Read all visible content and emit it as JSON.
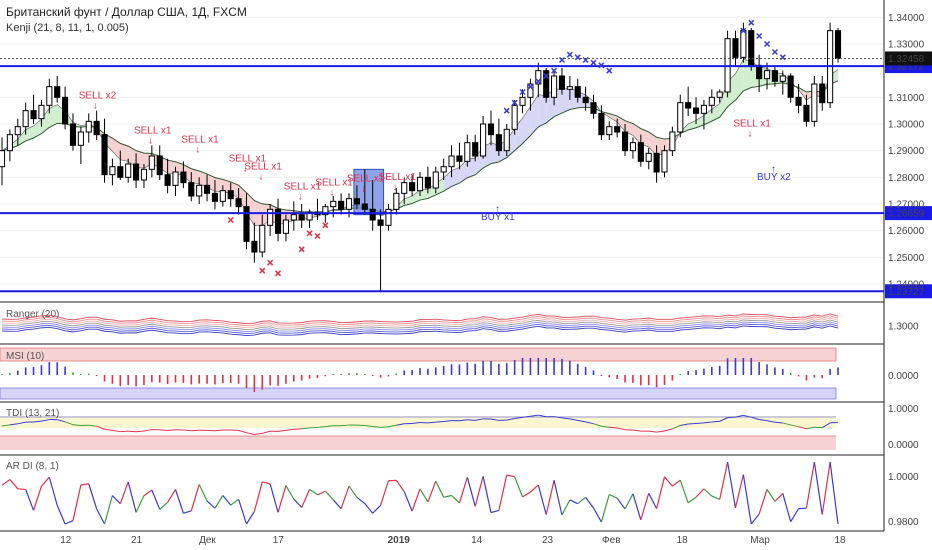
{
  "header": {
    "title": "Британский фунт / Доллар США, 1Д, FXCM",
    "subtitle": "Kenji (21, 8, 11, 1, 0.005)"
  },
  "colors": {
    "up": "#ffffff",
    "down": "#000000",
    "level_line": "#1a1ae6",
    "sell": "#e0304a",
    "buy": "#3a3ad6",
    "x_marker_red": "#e0304a",
    "x_marker_blue": "#3a3ad6",
    "cloud_red": "#f3c9c9",
    "cloud_blue": "#cfd0f3",
    "cloud_green": "#c9ebc9"
  },
  "chart_data": [
    {
      "type": "candlestick",
      "name": "main",
      "ylim": [
        1.234,
        1.345
      ],
      "y_ticks": [
        "1.34000",
        "1.33000",
        "1.31000",
        "1.30000",
        "1.29000",
        "1.28000",
        "1.27000",
        "1.26000",
        "1.25000",
        "1.24000"
      ],
      "x_tick_labels": [
        "12",
        "21",
        "Дек",
        "17",
        "2019",
        "14",
        "23",
        "Фев",
        "18",
        "Мар",
        "18"
      ],
      "horizontal_levels": [
        {
          "value": 1.32172,
          "label": "1.32172"
        },
        {
          "value": 1.26659,
          "label": "1.26659"
        },
        {
          "value": 1.23727,
          "label": "1.23727"
        }
      ],
      "last_price_label": "1.32458",
      "candles": [
        {
          "o": 1.284,
          "h": 1.295,
          "l": 1.277,
          "c": 1.29
        },
        {
          "o": 1.29,
          "h": 1.298,
          "l": 1.286,
          "c": 1.296
        },
        {
          "o": 1.296,
          "h": 1.302,
          "l": 1.292,
          "c": 1.299
        },
        {
          "o": 1.299,
          "h": 1.308,
          "l": 1.296,
          "c": 1.305
        },
        {
          "o": 1.305,
          "h": 1.311,
          "l": 1.3,
          "c": 1.302
        },
        {
          "o": 1.302,
          "h": 1.309,
          "l": 1.299,
          "c": 1.307
        },
        {
          "o": 1.307,
          "h": 1.317,
          "l": 1.304,
          "c": 1.314
        },
        {
          "o": 1.314,
          "h": 1.318,
          "l": 1.308,
          "c": 1.31
        },
        {
          "o": 1.31,
          "h": 1.314,
          "l": 1.298,
          "c": 1.3
        },
        {
          "o": 1.3,
          "h": 1.304,
          "l": 1.29,
          "c": 1.292
        },
        {
          "o": 1.292,
          "h": 1.299,
          "l": 1.285,
          "c": 1.297
        },
        {
          "o": 1.297,
          "h": 1.304,
          "l": 1.293,
          "c": 1.301
        },
        {
          "o": 1.301,
          "h": 1.305,
          "l": 1.294,
          "c": 1.296
        },
        {
          "o": 1.296,
          "h": 1.302,
          "l": 1.278,
          "c": 1.281
        },
        {
          "o": 1.281,
          "h": 1.287,
          "l": 1.277,
          "c": 1.284
        },
        {
          "o": 1.284,
          "h": 1.29,
          "l": 1.279,
          "c": 1.28
        },
        {
          "o": 1.28,
          "h": 1.287,
          "l": 1.278,
          "c": 1.285
        },
        {
          "o": 1.285,
          "h": 1.289,
          "l": 1.276,
          "c": 1.279
        },
        {
          "o": 1.279,
          "h": 1.285,
          "l": 1.276,
          "c": 1.283
        },
        {
          "o": 1.283,
          "h": 1.292,
          "l": 1.28,
          "c": 1.288
        },
        {
          "o": 1.288,
          "h": 1.292,
          "l": 1.279,
          "c": 1.281
        },
        {
          "o": 1.281,
          "h": 1.287,
          "l": 1.274,
          "c": 1.277
        },
        {
          "o": 1.277,
          "h": 1.284,
          "l": 1.273,
          "c": 1.282
        },
        {
          "o": 1.282,
          "h": 1.286,
          "l": 1.276,
          "c": 1.278
        },
        {
          "o": 1.278,
          "h": 1.282,
          "l": 1.271,
          "c": 1.273
        },
        {
          "o": 1.273,
          "h": 1.28,
          "l": 1.27,
          "c": 1.277
        },
        {
          "o": 1.277,
          "h": 1.281,
          "l": 1.271,
          "c": 1.274
        },
        {
          "o": 1.274,
          "h": 1.279,
          "l": 1.268,
          "c": 1.271
        },
        {
          "o": 1.271,
          "h": 1.277,
          "l": 1.269,
          "c": 1.275
        },
        {
          "o": 1.275,
          "h": 1.278,
          "l": 1.269,
          "c": 1.272
        },
        {
          "o": 1.272,
          "h": 1.276,
          "l": 1.266,
          "c": 1.269
        },
        {
          "o": 1.269,
          "h": 1.274,
          "l": 1.253,
          "c": 1.256
        },
        {
          "o": 1.256,
          "h": 1.263,
          "l": 1.248,
          "c": 1.252
        },
        {
          "o": 1.252,
          "h": 1.266,
          "l": 1.25,
          "c": 1.262
        },
        {
          "o": 1.262,
          "h": 1.27,
          "l": 1.258,
          "c": 1.268
        },
        {
          "o": 1.268,
          "h": 1.272,
          "l": 1.256,
          "c": 1.259
        },
        {
          "o": 1.259,
          "h": 1.266,
          "l": 1.256,
          "c": 1.264
        },
        {
          "o": 1.264,
          "h": 1.271,
          "l": 1.26,
          "c": 1.266
        },
        {
          "o": 1.266,
          "h": 1.27,
          "l": 1.261,
          "c": 1.264
        },
        {
          "o": 1.264,
          "h": 1.268,
          "l": 1.261,
          "c": 1.267
        },
        {
          "o": 1.267,
          "h": 1.272,
          "l": 1.264,
          "c": 1.266
        },
        {
          "o": 1.266,
          "h": 1.27,
          "l": 1.263,
          "c": 1.269
        },
        {
          "o": 1.269,
          "h": 1.273,
          "l": 1.265,
          "c": 1.271
        },
        {
          "o": 1.271,
          "h": 1.274,
          "l": 1.266,
          "c": 1.268
        },
        {
          "o": 1.268,
          "h": 1.274,
          "l": 1.265,
          "c": 1.272
        },
        {
          "o": 1.272,
          "h": 1.277,
          "l": 1.268,
          "c": 1.27
        },
        {
          "o": 1.27,
          "h": 1.283,
          "l": 1.266,
          "c": 1.268
        },
        {
          "o": 1.268,
          "h": 1.279,
          "l": 1.26,
          "c": 1.264
        },
        {
          "o": 1.264,
          "h": 1.268,
          "l": 1.2373,
          "c": 1.262
        },
        {
          "o": 1.262,
          "h": 1.27,
          "l": 1.26,
          "c": 1.268
        },
        {
          "o": 1.268,
          "h": 1.276,
          "l": 1.266,
          "c": 1.274
        },
        {
          "o": 1.274,
          "h": 1.28,
          "l": 1.27,
          "c": 1.278
        },
        {
          "o": 1.278,
          "h": 1.281,
          "l": 1.273,
          "c": 1.275
        },
        {
          "o": 1.275,
          "h": 1.282,
          "l": 1.273,
          "c": 1.28
        },
        {
          "o": 1.28,
          "h": 1.284,
          "l": 1.274,
          "c": 1.276
        },
        {
          "o": 1.276,
          "h": 1.284,
          "l": 1.274,
          "c": 1.282
        },
        {
          "o": 1.282,
          "h": 1.287,
          "l": 1.279,
          "c": 1.284
        },
        {
          "o": 1.284,
          "h": 1.292,
          "l": 1.28,
          "c": 1.288
        },
        {
          "o": 1.288,
          "h": 1.293,
          "l": 1.283,
          "c": 1.286
        },
        {
          "o": 1.286,
          "h": 1.296,
          "l": 1.284,
          "c": 1.293
        },
        {
          "o": 1.293,
          "h": 1.296,
          "l": 1.286,
          "c": 1.288
        },
        {
          "o": 1.288,
          "h": 1.303,
          "l": 1.287,
          "c": 1.3
        },
        {
          "o": 1.3,
          "h": 1.305,
          "l": 1.292,
          "c": 1.296
        },
        {
          "o": 1.296,
          "h": 1.302,
          "l": 1.288,
          "c": 1.29
        },
        {
          "o": 1.29,
          "h": 1.3,
          "l": 1.288,
          "c": 1.298
        },
        {
          "o": 1.298,
          "h": 1.309,
          "l": 1.296,
          "c": 1.307
        },
        {
          "o": 1.307,
          "h": 1.313,
          "l": 1.304,
          "c": 1.31
        },
        {
          "o": 1.31,
          "h": 1.317,
          "l": 1.305,
          "c": 1.315
        },
        {
          "o": 1.315,
          "h": 1.323,
          "l": 1.31,
          "c": 1.32
        },
        {
          "o": 1.32,
          "h": 1.321,
          "l": 1.308,
          "c": 1.31
        },
        {
          "o": 1.31,
          "h": 1.32,
          "l": 1.307,
          "c": 1.318
        },
        {
          "o": 1.318,
          "h": 1.321,
          "l": 1.311,
          "c": 1.313
        },
        {
          "o": 1.313,
          "h": 1.318,
          "l": 1.309,
          "c": 1.314
        },
        {
          "o": 1.314,
          "h": 1.317,
          "l": 1.308,
          "c": 1.31
        },
        {
          "o": 1.31,
          "h": 1.314,
          "l": 1.305,
          "c": 1.308
        },
        {
          "o": 1.308,
          "h": 1.311,
          "l": 1.302,
          "c": 1.304
        },
        {
          "o": 1.304,
          "h": 1.307,
          "l": 1.294,
          "c": 1.296
        },
        {
          "o": 1.296,
          "h": 1.301,
          "l": 1.294,
          "c": 1.299
        },
        {
          "o": 1.299,
          "h": 1.302,
          "l": 1.295,
          "c": 1.297
        },
        {
          "o": 1.297,
          "h": 1.3,
          "l": 1.288,
          "c": 1.29
        },
        {
          "o": 1.29,
          "h": 1.295,
          "l": 1.287,
          "c": 1.293
        },
        {
          "o": 1.293,
          "h": 1.296,
          "l": 1.284,
          "c": 1.286
        },
        {
          "o": 1.286,
          "h": 1.291,
          "l": 1.283,
          "c": 1.289
        },
        {
          "o": 1.289,
          "h": 1.292,
          "l": 1.278,
          "c": 1.282
        },
        {
          "o": 1.282,
          "h": 1.292,
          "l": 1.28,
          "c": 1.29
        },
        {
          "o": 1.29,
          "h": 1.299,
          "l": 1.288,
          "c": 1.297
        },
        {
          "o": 1.297,
          "h": 1.311,
          "l": 1.295,
          "c": 1.308
        },
        {
          "o": 1.308,
          "h": 1.314,
          "l": 1.303,
          "c": 1.306
        },
        {
          "o": 1.306,
          "h": 1.31,
          "l": 1.3,
          "c": 1.304
        },
        {
          "o": 1.304,
          "h": 1.309,
          "l": 1.298,
          "c": 1.307
        },
        {
          "o": 1.307,
          "h": 1.313,
          "l": 1.304,
          "c": 1.31
        },
        {
          "o": 1.31,
          "h": 1.313,
          "l": 1.308,
          "c": 1.312
        },
        {
          "o": 1.312,
          "h": 1.335,
          "l": 1.31,
          "c": 1.332
        },
        {
          "o": 1.332,
          "h": 1.335,
          "l": 1.322,
          "c": 1.325
        },
        {
          "o": 1.325,
          "h": 1.338,
          "l": 1.323,
          "c": 1.335
        },
        {
          "o": 1.335,
          "h": 1.336,
          "l": 1.32,
          "c": 1.322
        },
        {
          "o": 1.322,
          "h": 1.326,
          "l": 1.312,
          "c": 1.317
        },
        {
          "o": 1.317,
          "h": 1.323,
          "l": 1.313,
          "c": 1.32
        },
        {
          "o": 1.32,
          "h": 1.322,
          "l": 1.314,
          "c": 1.316
        },
        {
          "o": 1.316,
          "h": 1.32,
          "l": 1.311,
          "c": 1.318
        },
        {
          "o": 1.318,
          "h": 1.319,
          "l": 1.308,
          "c": 1.31
        },
        {
          "o": 1.31,
          "h": 1.315,
          "l": 1.304,
          "c": 1.307
        },
        {
          "o": 1.307,
          "h": 1.311,
          "l": 1.299,
          "c": 1.301
        },
        {
          "o": 1.301,
          "h": 1.318,
          "l": 1.299,
          "c": 1.315
        },
        {
          "o": 1.315,
          "h": 1.318,
          "l": 1.305,
          "c": 1.308
        },
        {
          "o": 1.308,
          "h": 1.338,
          "l": 1.306,
          "c": 1.335
        },
        {
          "o": 1.335,
          "h": 1.336,
          "l": 1.323,
          "c": 1.3246
        }
      ],
      "signals": [
        {
          "text": "SELL x2",
          "type": "sell",
          "i": 11,
          "price": 1.3095
        },
        {
          "text": "SELL x1",
          "type": "sell",
          "i": 18,
          "price": 1.2965
        },
        {
          "text": "SELL x1",
          "type": "sell",
          "i": 24,
          "price": 1.293
        },
        {
          "text": "SELL x1",
          "type": "sell",
          "i": 30,
          "price": 1.286
        },
        {
          "text": "SELL x1",
          "type": "sell",
          "i": 32,
          "price": 1.283
        },
        {
          "text": "SELL x1",
          "type": "sell",
          "i": 37,
          "price": 1.2755
        },
        {
          "text": "SELL x1",
          "type": "sell",
          "i": 41,
          "price": 1.277
        },
        {
          "text": "SELL x1",
          "type": "sell",
          "i": 45,
          "price": 1.2785
        },
        {
          "text": "SELL x1",
          "type": "sell",
          "i": 49,
          "price": 1.279
        },
        {
          "text": "BUY x1",
          "type": "buy",
          "i": 62,
          "price": 1.264
        },
        {
          "text": "SELL x1",
          "type": "sell",
          "i": 94,
          "price": 1.299
        },
        {
          "text": "BUY x2",
          "type": "buy",
          "i": 97,
          "price": 1.279
        }
      ],
      "x_markers_red": [
        {
          "i": 29,
          "price": 1.264
        },
        {
          "i": 33,
          "price": 1.245
        },
        {
          "i": 34,
          "price": 1.248
        },
        {
          "i": 35,
          "price": 1.244
        },
        {
          "i": 38,
          "price": 1.253
        },
        {
          "i": 39,
          "price": 1.259
        },
        {
          "i": 40,
          "price": 1.258
        },
        {
          "i": 41,
          "price": 1.262
        }
      ],
      "x_markers_blue": [
        {
          "i": 64,
          "price": 1.305
        },
        {
          "i": 65,
          "price": 1.308
        },
        {
          "i": 66,
          "price": 1.312
        },
        {
          "i": 67,
          "price": 1.314
        },
        {
          "i": 68,
          "price": 1.316
        },
        {
          "i": 69,
          "price": 1.318
        },
        {
          "i": 70,
          "price": 1.32
        },
        {
          "i": 71,
          "price": 1.324
        },
        {
          "i": 72,
          "price": 1.326
        },
        {
          "i": 73,
          "price": 1.325
        },
        {
          "i": 74,
          "price": 1.324
        },
        {
          "i": 75,
          "price": 1.323
        },
        {
          "i": 76,
          "price": 1.322
        },
        {
          "i": 77,
          "price": 1.32
        },
        {
          "i": 94,
          "price": 1.335
        },
        {
          "i": 95,
          "price": 1.338
        },
        {
          "i": 96,
          "price": 1.333
        },
        {
          "i": 97,
          "price": 1.33
        },
        {
          "i": 98,
          "price": 1.327
        },
        {
          "i": 99,
          "price": 1.325
        }
      ]
    },
    {
      "type": "line",
      "name": "Ranger",
      "label": "Ranger (20)",
      "y_ticks": [
        "1.3000"
      ]
    },
    {
      "type": "histogram",
      "name": "MSI",
      "label": "MSI (10)",
      "y_ticks": [
        "0.0000"
      ]
    },
    {
      "type": "line",
      "name": "TDI",
      "label": "TDI (13, 21)",
      "y_ticks": [
        "1.0000",
        "0.0000"
      ]
    },
    {
      "type": "line",
      "name": "AR DI",
      "label": "AR DI (8, 1)",
      "y_ticks": [
        "1.0000",
        "0.9800"
      ]
    }
  ]
}
